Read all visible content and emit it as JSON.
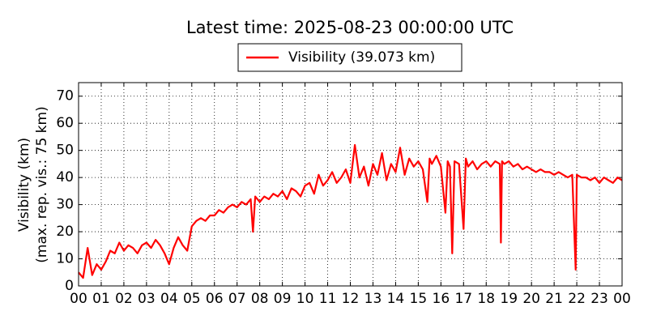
{
  "chart_data": {
    "type": "line",
    "title": "Latest time: 2025-08-23 00:00:00 UTC",
    "y_label": [
      "Visibility (km)",
      "(max. rep. vis.: 75 km)"
    ],
    "legend": "upper center",
    "grid": true,
    "xlim": [
      0,
      24
    ],
    "ylim": [
      0,
      75
    ],
    "yticks": [
      0,
      10,
      20,
      30,
      40,
      50,
      60,
      70
    ],
    "xticks": [
      {
        "value": 0,
        "label": "00"
      },
      {
        "value": 1,
        "label": "01"
      },
      {
        "value": 2,
        "label": "02"
      },
      {
        "value": 3,
        "label": "03"
      },
      {
        "value": 4,
        "label": "04"
      },
      {
        "value": 5,
        "label": "05"
      },
      {
        "value": 6,
        "label": "06"
      },
      {
        "value": 7,
        "label": "07"
      },
      {
        "value": 8,
        "label": "08"
      },
      {
        "value": 9,
        "label": "09"
      },
      {
        "value": 10,
        "label": "10"
      },
      {
        "value": 11,
        "label": "11"
      },
      {
        "value": 12,
        "label": "12"
      },
      {
        "value": 13,
        "label": "13"
      },
      {
        "value": 14,
        "label": "14"
      },
      {
        "value": 15,
        "label": "15"
      },
      {
        "value": 16,
        "label": "16"
      },
      {
        "value": 17,
        "label": "17"
      },
      {
        "value": 18,
        "label": "18"
      },
      {
        "value": 19,
        "label": "19"
      },
      {
        "value": 20,
        "label": "20"
      },
      {
        "value": 21,
        "label": "21"
      },
      {
        "value": 22,
        "label": "22"
      },
      {
        "value": 23,
        "label": "23"
      },
      {
        "value": 24,
        "label": "00"
      }
    ],
    "x": [
      0.0,
      0.2,
      0.4,
      0.6,
      0.8,
      1.0,
      1.2,
      1.4,
      1.6,
      1.8,
      2.0,
      2.2,
      2.4,
      2.6,
      2.8,
      3.0,
      3.2,
      3.4,
      3.6,
      3.8,
      4.0,
      4.2,
      4.4,
      4.6,
      4.8,
      5.0,
      5.2,
      5.4,
      5.6,
      5.8,
      6.0,
      6.2,
      6.4,
      6.6,
      6.8,
      7.0,
      7.2,
      7.4,
      7.6,
      7.7,
      7.8,
      8.0,
      8.2,
      8.4,
      8.6,
      8.8,
      9.0,
      9.2,
      9.4,
      9.6,
      9.8,
      10.0,
      10.2,
      10.4,
      10.6,
      10.8,
      11.0,
      11.2,
      11.4,
      11.6,
      11.8,
      12.0,
      12.2,
      12.4,
      12.6,
      12.8,
      13.0,
      13.2,
      13.4,
      13.6,
      13.8,
      14.0,
      14.2,
      14.4,
      14.6,
      14.8,
      15.0,
      15.2,
      15.4,
      15.5,
      15.6,
      15.8,
      16.0,
      16.2,
      16.3,
      16.4,
      16.5,
      16.6,
      16.8,
      17.0,
      17.1,
      17.2,
      17.4,
      17.6,
      17.8,
      18.0,
      18.2,
      18.4,
      18.6,
      18.65,
      18.7,
      18.8,
      19.0,
      19.2,
      19.4,
      19.6,
      19.8,
      20.0,
      20.2,
      20.4,
      20.6,
      20.8,
      21.0,
      21.2,
      21.4,
      21.6,
      21.8,
      21.95,
      22.0,
      22.2,
      22.4,
      22.6,
      22.8,
      23.0,
      23.2,
      23.4,
      23.6,
      23.8,
      24.0
    ],
    "series": [
      {
        "name": "Visibility (39.073 km)",
        "color": "#ff0000",
        "values": [
          5,
          3,
          14,
          4,
          8,
          6,
          9,
          13,
          12,
          16,
          13,
          15,
          14,
          12,
          15,
          16,
          14,
          17,
          15,
          12,
          8,
          14,
          18,
          15,
          13,
          22,
          24,
          25,
          24,
          26,
          26,
          28,
          27,
          29,
          30,
          29,
          31,
          30,
          32,
          20,
          33,
          31,
          33,
          32,
          34,
          33,
          35,
          32,
          36,
          35,
          33,
          37,
          38,
          34,
          41,
          37,
          39,
          42,
          38,
          40,
          43,
          38,
          52,
          40,
          44,
          37,
          45,
          41,
          49,
          39,
          45,
          42,
          51,
          41,
          47,
          44,
          46,
          43,
          31,
          47,
          45,
          48,
          44,
          27,
          46,
          44,
          12,
          46,
          45,
          21,
          47,
          44,
          46,
          43,
          45,
          46,
          44,
          46,
          45,
          16,
          46,
          45,
          46,
          44,
          45,
          43,
          44,
          43,
          42,
          43,
          42,
          42,
          41,
          42,
          41,
          40,
          41,
          6,
          41,
          40,
          40,
          39,
          40,
          38,
          40,
          39,
          38,
          40,
          39
        ]
      }
    ]
  }
}
